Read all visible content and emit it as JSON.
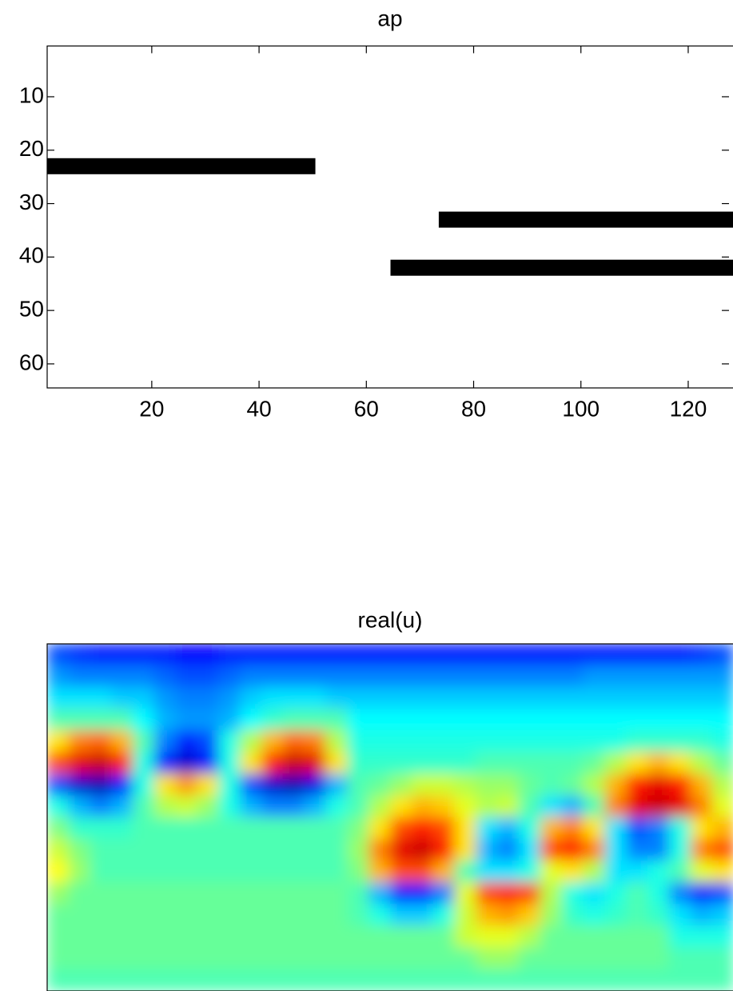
{
  "chart_data": [
    {
      "type": "image",
      "title": "ap",
      "color": "#000000",
      "segments": [
        {
          "rows": [
            22,
            24
          ],
          "cols": [
            1,
            50
          ]
        },
        {
          "rows": [
            32,
            34
          ],
          "cols": [
            74,
            128
          ]
        },
        {
          "rows": [
            41,
            43
          ],
          "cols": [
            65,
            128
          ]
        }
      ],
      "xlim": [
        0.5,
        128.5
      ],
      "ylim": [
        0.5,
        64.5
      ],
      "y_reversed": true,
      "xticks": [
        20,
        40,
        60,
        80,
        100,
        120
      ],
      "yticks": [
        10,
        20,
        30,
        40,
        50,
        60
      ]
    },
    {
      "type": "heatmap",
      "title": "real(u)",
      "colormap": "jet",
      "clim": [
        -1,
        1
      ],
      "xlim": [
        0.5,
        128.5
      ],
      "ylim": [
        0.5,
        64.5
      ],
      "y_reversed": true,
      "z": [
        [
          -0.6,
          -0.65,
          -0.7,
          -0.7,
          -0.7,
          -0.7,
          -0.75,
          -0.75,
          -0.7,
          -0.7,
          -0.7,
          -0.7,
          -0.7,
          -0.7,
          -0.7,
          -0.7,
          -0.7,
          -0.7,
          -0.7,
          -0.7,
          -0.7,
          -0.7,
          -0.7,
          -0.7,
          -0.7,
          -0.7,
          -0.7,
          -0.7,
          -0.7,
          -0.7,
          -0.65,
          -0.6
        ],
        [
          -0.45,
          -0.5,
          -0.5,
          -0.5,
          -0.5,
          -0.55,
          -0.6,
          -0.6,
          -0.55,
          -0.5,
          -0.5,
          -0.5,
          -0.5,
          -0.5,
          -0.5,
          -0.5,
          -0.5,
          -0.5,
          -0.5,
          -0.5,
          -0.5,
          -0.5,
          -0.5,
          -0.5,
          -0.5,
          -0.45,
          -0.45,
          -0.45,
          -0.45,
          -0.45,
          -0.45,
          -0.45
        ],
        [
          -0.3,
          -0.3,
          -0.3,
          -0.35,
          -0.35,
          -0.45,
          -0.5,
          -0.5,
          -0.45,
          -0.35,
          -0.3,
          -0.3,
          -0.3,
          -0.35,
          -0.35,
          -0.35,
          -0.35,
          -0.35,
          -0.35,
          -0.35,
          -0.35,
          -0.35,
          -0.35,
          -0.35,
          -0.35,
          -0.35,
          -0.35,
          -0.35,
          -0.35,
          -0.35,
          -0.35,
          -0.35
        ],
        [
          -0.1,
          -0.1,
          -0.1,
          -0.1,
          -0.25,
          -0.4,
          -0.45,
          -0.45,
          -0.4,
          -0.25,
          -0.15,
          -0.1,
          -0.1,
          -0.1,
          -0.25,
          -0.25,
          -0.25,
          -0.25,
          -0.25,
          -0.25,
          -0.25,
          -0.25,
          -0.25,
          -0.25,
          -0.25,
          -0.25,
          -0.25,
          -0.25,
          -0.25,
          -0.25,
          -0.25,
          -0.25
        ],
        [
          0.3,
          0.5,
          0.55,
          0.4,
          -0.1,
          -0.5,
          -0.7,
          -0.6,
          -0.2,
          0.1,
          0.4,
          0.55,
          0.5,
          0.1,
          -0.2,
          -0.2,
          -0.2,
          -0.2,
          -0.2,
          -0.2,
          -0.2,
          -0.2,
          -0.2,
          -0.2,
          -0.2,
          -0.2,
          -0.2,
          -0.15,
          -0.15,
          -0.15,
          -0.15,
          -0.2
        ],
        [
          0.6,
          0.8,
          0.85,
          0.7,
          -0.2,
          -0.7,
          -0.85,
          -0.7,
          -0.2,
          0.3,
          0.7,
          0.85,
          0.8,
          0.3,
          -0.15,
          -0.15,
          -0.15,
          -0.15,
          -0.15,
          -0.15,
          -0.1,
          -0.1,
          -0.1,
          -0.1,
          -0.1,
          -0.05,
          0.1,
          0.3,
          0.4,
          0.3,
          0.1,
          -0.05
        ],
        [
          -0.6,
          -0.85,
          -0.9,
          -0.7,
          -0.2,
          0.3,
          0.45,
          0.3,
          -0.2,
          -0.6,
          -0.85,
          -0.9,
          -0.8,
          -0.4,
          -0.1,
          -0.05,
          0.05,
          0.15,
          0.15,
          0.1,
          0.05,
          0.05,
          -0.05,
          -0.1,
          -0.05,
          0.1,
          0.4,
          0.7,
          0.8,
          0.7,
          0.4,
          0.1
        ],
        [
          -0.2,
          -0.4,
          -0.5,
          -0.4,
          -0.1,
          0.1,
          0.15,
          0.05,
          -0.2,
          -0.4,
          -0.5,
          -0.5,
          -0.4,
          -0.2,
          -0.1,
          0.1,
          0.3,
          0.4,
          0.35,
          0.2,
          0.1,
          0.15,
          -0.1,
          -0.3,
          -0.4,
          -0.1,
          0.5,
          0.8,
          0.85,
          0.8,
          0.5,
          0.2
        ],
        [
          0.0,
          -0.15,
          -0.15,
          -0.15,
          -0.1,
          -0.1,
          -0.1,
          -0.1,
          -0.1,
          -0.1,
          -0.1,
          -0.1,
          -0.1,
          -0.1,
          0.0,
          0.3,
          0.6,
          0.7,
          0.6,
          0.3,
          -0.3,
          -0.4,
          -0.2,
          0.4,
          0.5,
          0.3,
          -0.3,
          -0.6,
          -0.5,
          -0.2,
          0.3,
          0.4
        ],
        [
          0.15,
          0.0,
          -0.1,
          -0.1,
          -0.1,
          -0.1,
          -0.1,
          -0.1,
          -0.1,
          -0.1,
          -0.1,
          -0.1,
          -0.1,
          -0.1,
          0.05,
          0.5,
          0.8,
          0.85,
          0.7,
          0.3,
          -0.4,
          -0.5,
          -0.3,
          0.6,
          0.7,
          0.5,
          -0.3,
          -0.5,
          -0.5,
          -0.2,
          0.5,
          0.6
        ],
        [
          0.25,
          0.05,
          -0.1,
          -0.1,
          -0.1,
          -0.1,
          -0.1,
          -0.1,
          -0.1,
          -0.1,
          -0.1,
          -0.1,
          -0.1,
          -0.1,
          0.0,
          0.4,
          0.6,
          0.6,
          0.4,
          -0.1,
          -0.3,
          -0.3,
          -0.2,
          0.2,
          0.3,
          0.1,
          -0.3,
          -0.3,
          -0.2,
          -0.1,
          0.2,
          0.3
        ],
        [
          0.05,
          -0.05,
          -0.05,
          -0.05,
          -0.05,
          -0.05,
          -0.05,
          -0.05,
          -0.05,
          -0.05,
          -0.05,
          -0.05,
          -0.05,
          -0.05,
          -0.1,
          -0.4,
          -0.7,
          -0.7,
          -0.5,
          0.2,
          0.6,
          0.7,
          0.6,
          0.1,
          -0.2,
          -0.3,
          -0.2,
          -0.1,
          -0.2,
          -0.5,
          -0.7,
          -0.6
        ],
        [
          -0.05,
          -0.05,
          -0.05,
          -0.05,
          -0.05,
          -0.05,
          -0.05,
          -0.05,
          -0.05,
          -0.05,
          -0.05,
          -0.05,
          -0.05,
          -0.05,
          -0.1,
          -0.2,
          -0.35,
          -0.35,
          -0.2,
          0.15,
          0.4,
          0.45,
          0.35,
          0.05,
          -0.15,
          -0.2,
          -0.15,
          -0.1,
          -0.15,
          -0.3,
          -0.4,
          -0.35
        ],
        [
          -0.05,
          -0.05,
          -0.05,
          -0.05,
          -0.05,
          -0.05,
          -0.05,
          -0.05,
          -0.05,
          -0.05,
          -0.05,
          -0.05,
          -0.05,
          -0.05,
          -0.05,
          -0.05,
          -0.05,
          -0.05,
          -0.05,
          0.15,
          0.2,
          0.2,
          0.1,
          -0.05,
          -0.05,
          -0.05,
          -0.05,
          -0.05,
          -0.05,
          -0.2,
          -0.2,
          -0.2
        ],
        [
          -0.05,
          -0.05,
          -0.05,
          -0.05,
          -0.05,
          -0.05,
          -0.05,
          -0.05,
          -0.05,
          -0.05,
          -0.05,
          -0.05,
          -0.05,
          -0.05,
          -0.05,
          -0.05,
          -0.05,
          -0.05,
          -0.05,
          -0.05,
          0.05,
          0.05,
          -0.05,
          -0.05,
          -0.05,
          -0.05,
          -0.05,
          -0.05,
          -0.05,
          -0.1,
          -0.1,
          -0.1
        ],
        [
          -0.1,
          -0.1,
          -0.1,
          -0.1,
          -0.1,
          -0.1,
          -0.1,
          -0.1,
          -0.1,
          -0.1,
          -0.1,
          -0.1,
          -0.1,
          -0.1,
          -0.1,
          -0.1,
          -0.1,
          -0.1,
          -0.1,
          -0.1,
          -0.1,
          -0.1,
          -0.1,
          -0.1,
          -0.1,
          -0.1,
          -0.1,
          -0.1,
          -0.1,
          -0.1,
          -0.1,
          -0.1
        ]
      ]
    }
  ]
}
